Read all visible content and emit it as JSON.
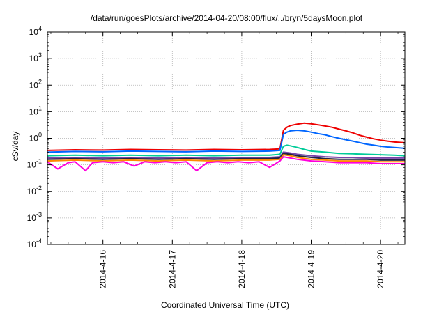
{
  "chart_data": {
    "type": "line",
    "title": "/data/run/goesPlots/archive/2014-04-20/08:00/flux/../bryn/5daysMoon.plot",
    "xlabel": "Coordinated Universal Time (UTC)",
    "ylabel": "cSv/day",
    "yscale": "log",
    "ylim": [
      0.0001,
      10000
    ],
    "xlim_days": [
      2014,
      4,
      15.2,
      20.35
    ],
    "y_ticks": [
      {
        "base": "10",
        "exp": "-4",
        "value": 0.0001
      },
      {
        "base": "10",
        "exp": "-3",
        "value": 0.001
      },
      {
        "base": "10",
        "exp": "-2",
        "value": 0.01
      },
      {
        "base": "10",
        "exp": "-1",
        "value": 0.1
      },
      {
        "base": "10",
        "exp": "0",
        "value": 1
      },
      {
        "base": "10",
        "exp": "1",
        "value": 10
      },
      {
        "base": "10",
        "exp": "2",
        "value": 100
      },
      {
        "base": "10",
        "exp": "3",
        "value": 1000
      },
      {
        "base": "10",
        "exp": "4",
        "value": 10000
      }
    ],
    "x_ticks": [
      {
        "label": "2014-4-16",
        "day": 16
      },
      {
        "label": "2014-4-17",
        "day": 17
      },
      {
        "label": "2014-4-18",
        "day": 18
      },
      {
        "label": "2014-4-19",
        "day": 19
      },
      {
        "label": "2014-4-20",
        "day": 20
      }
    ],
    "grid": true,
    "legend": "none",
    "series": [
      {
        "color": "#ee0000",
        "x": [
          15.2,
          15.6,
          16.0,
          16.4,
          16.8,
          17.2,
          17.6,
          18.0,
          18.4,
          18.55,
          18.6,
          18.65,
          18.7,
          18.8,
          18.9,
          19.0,
          19.1,
          19.2,
          19.3,
          19.4,
          19.5,
          19.6,
          19.7,
          19.8,
          19.9,
          20.0,
          20.1,
          20.2,
          20.35
        ],
        "y": [
          0.35,
          0.37,
          0.36,
          0.38,
          0.37,
          0.36,
          0.38,
          0.37,
          0.38,
          0.4,
          2.0,
          2.6,
          3.0,
          3.4,
          3.7,
          3.5,
          3.2,
          2.9,
          2.6,
          2.2,
          1.9,
          1.6,
          1.3,
          1.1,
          0.95,
          0.85,
          0.78,
          0.72,
          0.68
        ]
      },
      {
        "color": "#0066ff",
        "x": [
          15.2,
          15.6,
          16.0,
          16.4,
          16.8,
          17.2,
          17.6,
          18.0,
          18.4,
          18.55,
          18.6,
          18.65,
          18.7,
          18.8,
          18.9,
          19.0,
          19.1,
          19.2,
          19.3,
          19.4,
          19.5,
          19.6,
          19.7,
          19.8,
          19.9,
          20.0,
          20.1,
          20.2,
          20.35
        ],
        "y": [
          0.3,
          0.32,
          0.31,
          0.33,
          0.32,
          0.31,
          0.33,
          0.32,
          0.33,
          0.35,
          1.4,
          1.7,
          1.9,
          2.0,
          1.9,
          1.7,
          1.5,
          1.35,
          1.15,
          1.0,
          0.88,
          0.78,
          0.68,
          0.6,
          0.55,
          0.5,
          0.47,
          0.45,
          0.42
        ]
      },
      {
        "color": "#00cc99",
        "x": [
          15.2,
          15.6,
          16.0,
          16.4,
          16.8,
          17.2,
          17.6,
          18.0,
          18.4,
          18.55,
          18.6,
          18.65,
          18.7,
          18.8,
          18.9,
          19.0,
          19.2,
          19.4,
          19.6,
          19.8,
          20.0,
          20.2,
          20.35
        ],
        "y": [
          0.22,
          0.23,
          0.22,
          0.23,
          0.22,
          0.23,
          0.22,
          0.23,
          0.23,
          0.25,
          0.5,
          0.55,
          0.52,
          0.45,
          0.38,
          0.33,
          0.3,
          0.27,
          0.26,
          0.25,
          0.24,
          0.23,
          0.22
        ]
      },
      {
        "color": "#7744aa",
        "x": [
          15.2,
          15.6,
          16.0,
          16.4,
          16.8,
          17.2,
          17.6,
          18.0,
          18.4,
          18.55,
          18.6,
          18.7,
          18.8,
          19.0,
          19.2,
          19.4,
          19.6,
          19.8,
          20.0,
          20.2,
          20.35
        ],
        "y": [
          0.18,
          0.19,
          0.18,
          0.19,
          0.18,
          0.19,
          0.18,
          0.19,
          0.19,
          0.2,
          0.3,
          0.28,
          0.25,
          0.22,
          0.2,
          0.19,
          0.19,
          0.18,
          0.18,
          0.18,
          0.18
        ]
      },
      {
        "color": "#222244",
        "x": [
          15.2,
          15.6,
          16.0,
          16.4,
          16.8,
          17.2,
          17.6,
          18.0,
          18.4,
          18.55,
          18.6,
          18.7,
          18.8,
          19.0,
          19.2,
          19.4,
          19.6,
          19.8,
          20.0,
          20.2,
          20.35
        ],
        "y": [
          0.16,
          0.17,
          0.16,
          0.17,
          0.16,
          0.17,
          0.16,
          0.17,
          0.17,
          0.18,
          0.27,
          0.25,
          0.22,
          0.19,
          0.17,
          0.16,
          0.16,
          0.16,
          0.15,
          0.15,
          0.15
        ]
      },
      {
        "color": "#ff8800",
        "x": [
          15.2,
          15.6,
          16.0,
          16.4,
          16.8,
          17.2,
          17.6,
          18.0,
          18.4,
          18.55,
          18.6,
          18.7,
          18.8,
          19.0,
          19.2,
          19.4,
          19.6,
          19.8,
          20.0,
          20.2,
          20.35
        ],
        "y": [
          0.14,
          0.15,
          0.14,
          0.15,
          0.14,
          0.15,
          0.14,
          0.15,
          0.15,
          0.16,
          0.24,
          0.22,
          0.19,
          0.16,
          0.15,
          0.14,
          0.14,
          0.14,
          0.13,
          0.13,
          0.13
        ]
      },
      {
        "color": "#ff00dd",
        "x": [
          15.2,
          15.35,
          15.5,
          15.6,
          15.75,
          15.85,
          16.0,
          16.15,
          16.3,
          16.45,
          16.6,
          16.75,
          16.9,
          17.05,
          17.2,
          17.35,
          17.5,
          17.65,
          17.8,
          17.95,
          18.1,
          18.25,
          18.4,
          18.55,
          18.6,
          18.7,
          18.8,
          19.0,
          19.2,
          19.4,
          19.6,
          19.8,
          20.0,
          20.2,
          20.35
        ],
        "y": [
          0.13,
          0.07,
          0.12,
          0.13,
          0.06,
          0.12,
          0.13,
          0.12,
          0.13,
          0.09,
          0.13,
          0.12,
          0.13,
          0.12,
          0.13,
          0.06,
          0.12,
          0.13,
          0.12,
          0.13,
          0.12,
          0.13,
          0.08,
          0.14,
          0.2,
          0.18,
          0.16,
          0.14,
          0.13,
          0.12,
          0.12,
          0.12,
          0.11,
          0.11,
          0.11
        ]
      }
    ]
  }
}
